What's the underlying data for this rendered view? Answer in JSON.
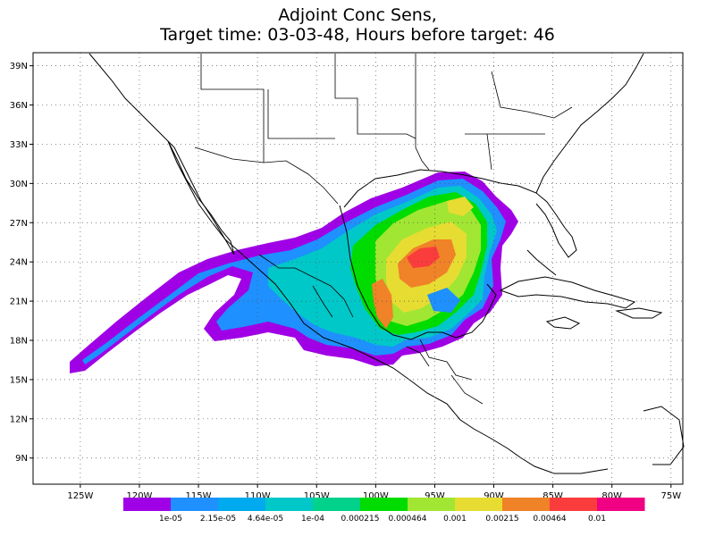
{
  "title": {
    "line1": "Adjoint Conc Sens,",
    "line2": "Target time: 03-03-48, Hours before target: 46"
  },
  "axes": {
    "lat_labels": [
      "39N",
      "36N",
      "33N",
      "30N",
      "27N",
      "24N",
      "21N",
      "18N",
      "15N",
      "12N",
      "9N"
    ],
    "lat_values": [
      39,
      36,
      33,
      30,
      27,
      24,
      21,
      18,
      15,
      12,
      9
    ],
    "lon_labels": [
      "125W",
      "120W",
      "115W",
      "110W",
      "105W",
      "100W",
      "95W",
      "90W",
      "85W",
      "80W",
      "75W"
    ],
    "lon_values": [
      -125,
      -120,
      -115,
      -110,
      -105,
      -100,
      -95,
      -90,
      -85,
      -80,
      -75
    ],
    "lon_range": [
      -129,
      -74
    ],
    "lat_range": [
      7,
      40
    ],
    "grid": "dotted"
  },
  "colorbar": {
    "colors": [
      "#a000e6",
      "#1e90ff",
      "#00aaee",
      "#00c8c8",
      "#00d28c",
      "#00dc00",
      "#a0e632",
      "#e6dc32",
      "#f08228",
      "#fa3c3c",
      "#f00082"
    ],
    "labels": [
      "1e-05",
      "2.15e-05",
      "4.64e-05",
      "1e-04",
      "0.000215",
      "0.000464",
      "0.001",
      "0.00215",
      "0.00464",
      "0.01"
    ]
  }
}
